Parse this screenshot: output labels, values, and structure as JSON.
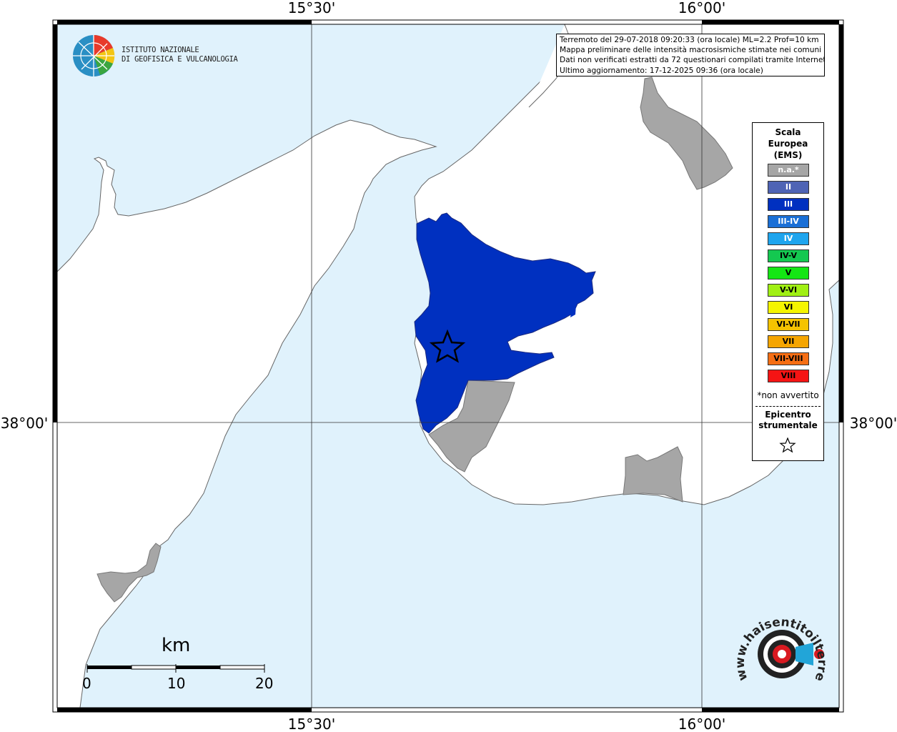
{
  "coordinates": {
    "top_left": "15°30'",
    "top_right": "16°00'",
    "bottom_left": "15°30'",
    "bottom_right": "16°00'",
    "left": "38°00'",
    "right": "38°00'"
  },
  "info": {
    "line1": "Terremoto del 29-07-2018 09:20:33 (ora locale) ML=2.2 Prof=10 km",
    "line2": "Mappa preliminare delle intensità macrosismiche stimate nei comuni",
    "line3": "Dati non verificati estratti da 72 questionari compilati tramite Internet.",
    "line4": "Ultimo aggiornamento: 17-12-2025 09:36 (ora locale)"
  },
  "legend": {
    "title_line1": "Scala",
    "title_line2": "Europea",
    "title_line3": "(EMS)",
    "items": [
      {
        "label": "n.a.*",
        "color": "#a6a6a6",
        "text_color": "#ffffff"
      },
      {
        "label": "II",
        "color": "#4f64b5",
        "text_color": "#ffffff"
      },
      {
        "label": "III",
        "color": "#0030c0",
        "text_color": "#ffffff"
      },
      {
        "label": "III-IV",
        "color": "#1a6fd6",
        "text_color": "#ffffff"
      },
      {
        "label": "IV",
        "color": "#1ea5ee",
        "text_color": "#ffffff"
      },
      {
        "label": "IV-V",
        "color": "#14c850",
        "text_color": "#000000"
      },
      {
        "label": "V",
        "color": "#14e614",
        "text_color": "#000000"
      },
      {
        "label": "V-VI",
        "color": "#a0f014",
        "text_color": "#000000"
      },
      {
        "label": "VI",
        "color": "#f5f500",
        "text_color": "#000000"
      },
      {
        "label": "VI-VII",
        "color": "#f5c300",
        "text_color": "#000000"
      },
      {
        "label": "VII",
        "color": "#f5a500",
        "text_color": "#000000"
      },
      {
        "label": "VII-VIII",
        "color": "#f56e14",
        "text_color": "#000000"
      },
      {
        "label": "VIII",
        "color": "#f51414",
        "text_color": "#000000"
      }
    ],
    "note": "*non avvertito",
    "epicentro_line1": "Epicentro",
    "epicentro_line2": "strumentale"
  },
  "ingv": {
    "line1": "ISTITUTO NAZIONALE",
    "line2": "DI GEOFISICA E VULCANOLOGIA"
  },
  "haisentito": {
    "text": "www.haisentitoilterremoto.it"
  },
  "scale_bar": {
    "unit": "km",
    "ticks": [
      "0",
      "10",
      "20"
    ]
  },
  "colors": {
    "sea": "#e0f2fc",
    "land": "#ffffff",
    "intensity_III": "#0030c0",
    "not_available": "#a6a6a6"
  }
}
